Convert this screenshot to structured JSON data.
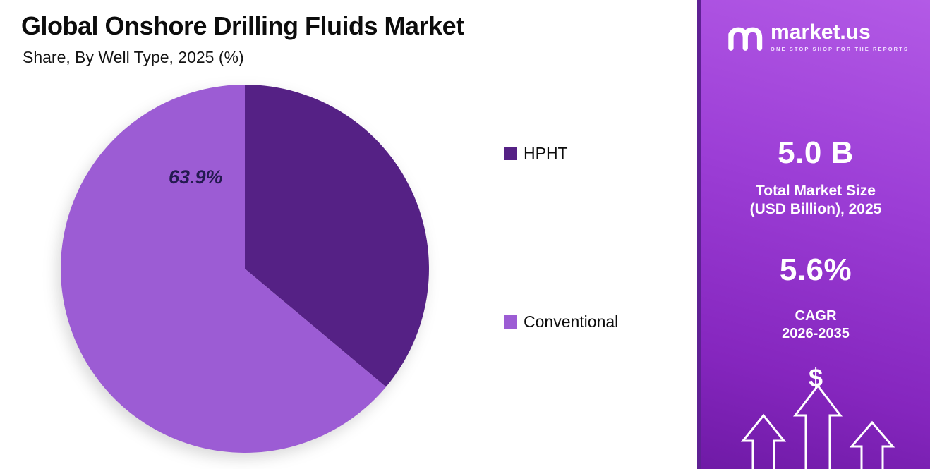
{
  "header": {
    "title": "Global Onshore Drilling Fluids Market",
    "subtitle": "Share, By Well Type, 2025 (%)"
  },
  "chart_data": {
    "type": "pie",
    "title": "Global Onshore Drilling Fluids Market",
    "subtitle": "Share, By Well Type, 2025 (%)",
    "unit": "%",
    "slices": [
      {
        "label": "HPHT",
        "value": 36.1,
        "color": "#552185"
      },
      {
        "label": "Conventional",
        "value": 63.9,
        "color": "#9c5cd4"
      }
    ],
    "data_label": "63.9%",
    "start_angle_deg": 0,
    "direction": "clockwise",
    "legend_position": "right"
  },
  "sidebar": {
    "brand": "market.us",
    "tagline": "ONE STOP SHOP FOR THE REPORTS",
    "stat1_value": "5.0 B",
    "stat1_label_line1": "Total Market Size",
    "stat1_label_line2": "(USD Billion), 2025",
    "stat2_value": "5.6%",
    "stat2_label_line1": "CAGR",
    "stat2_label_line2": "2026-2035",
    "dollar_symbol": "$"
  },
  "colors": {
    "hpht": "#552185",
    "conventional": "#9c5cd4",
    "panel_border": "#5f2194",
    "data_label_text": "#241a50"
  }
}
